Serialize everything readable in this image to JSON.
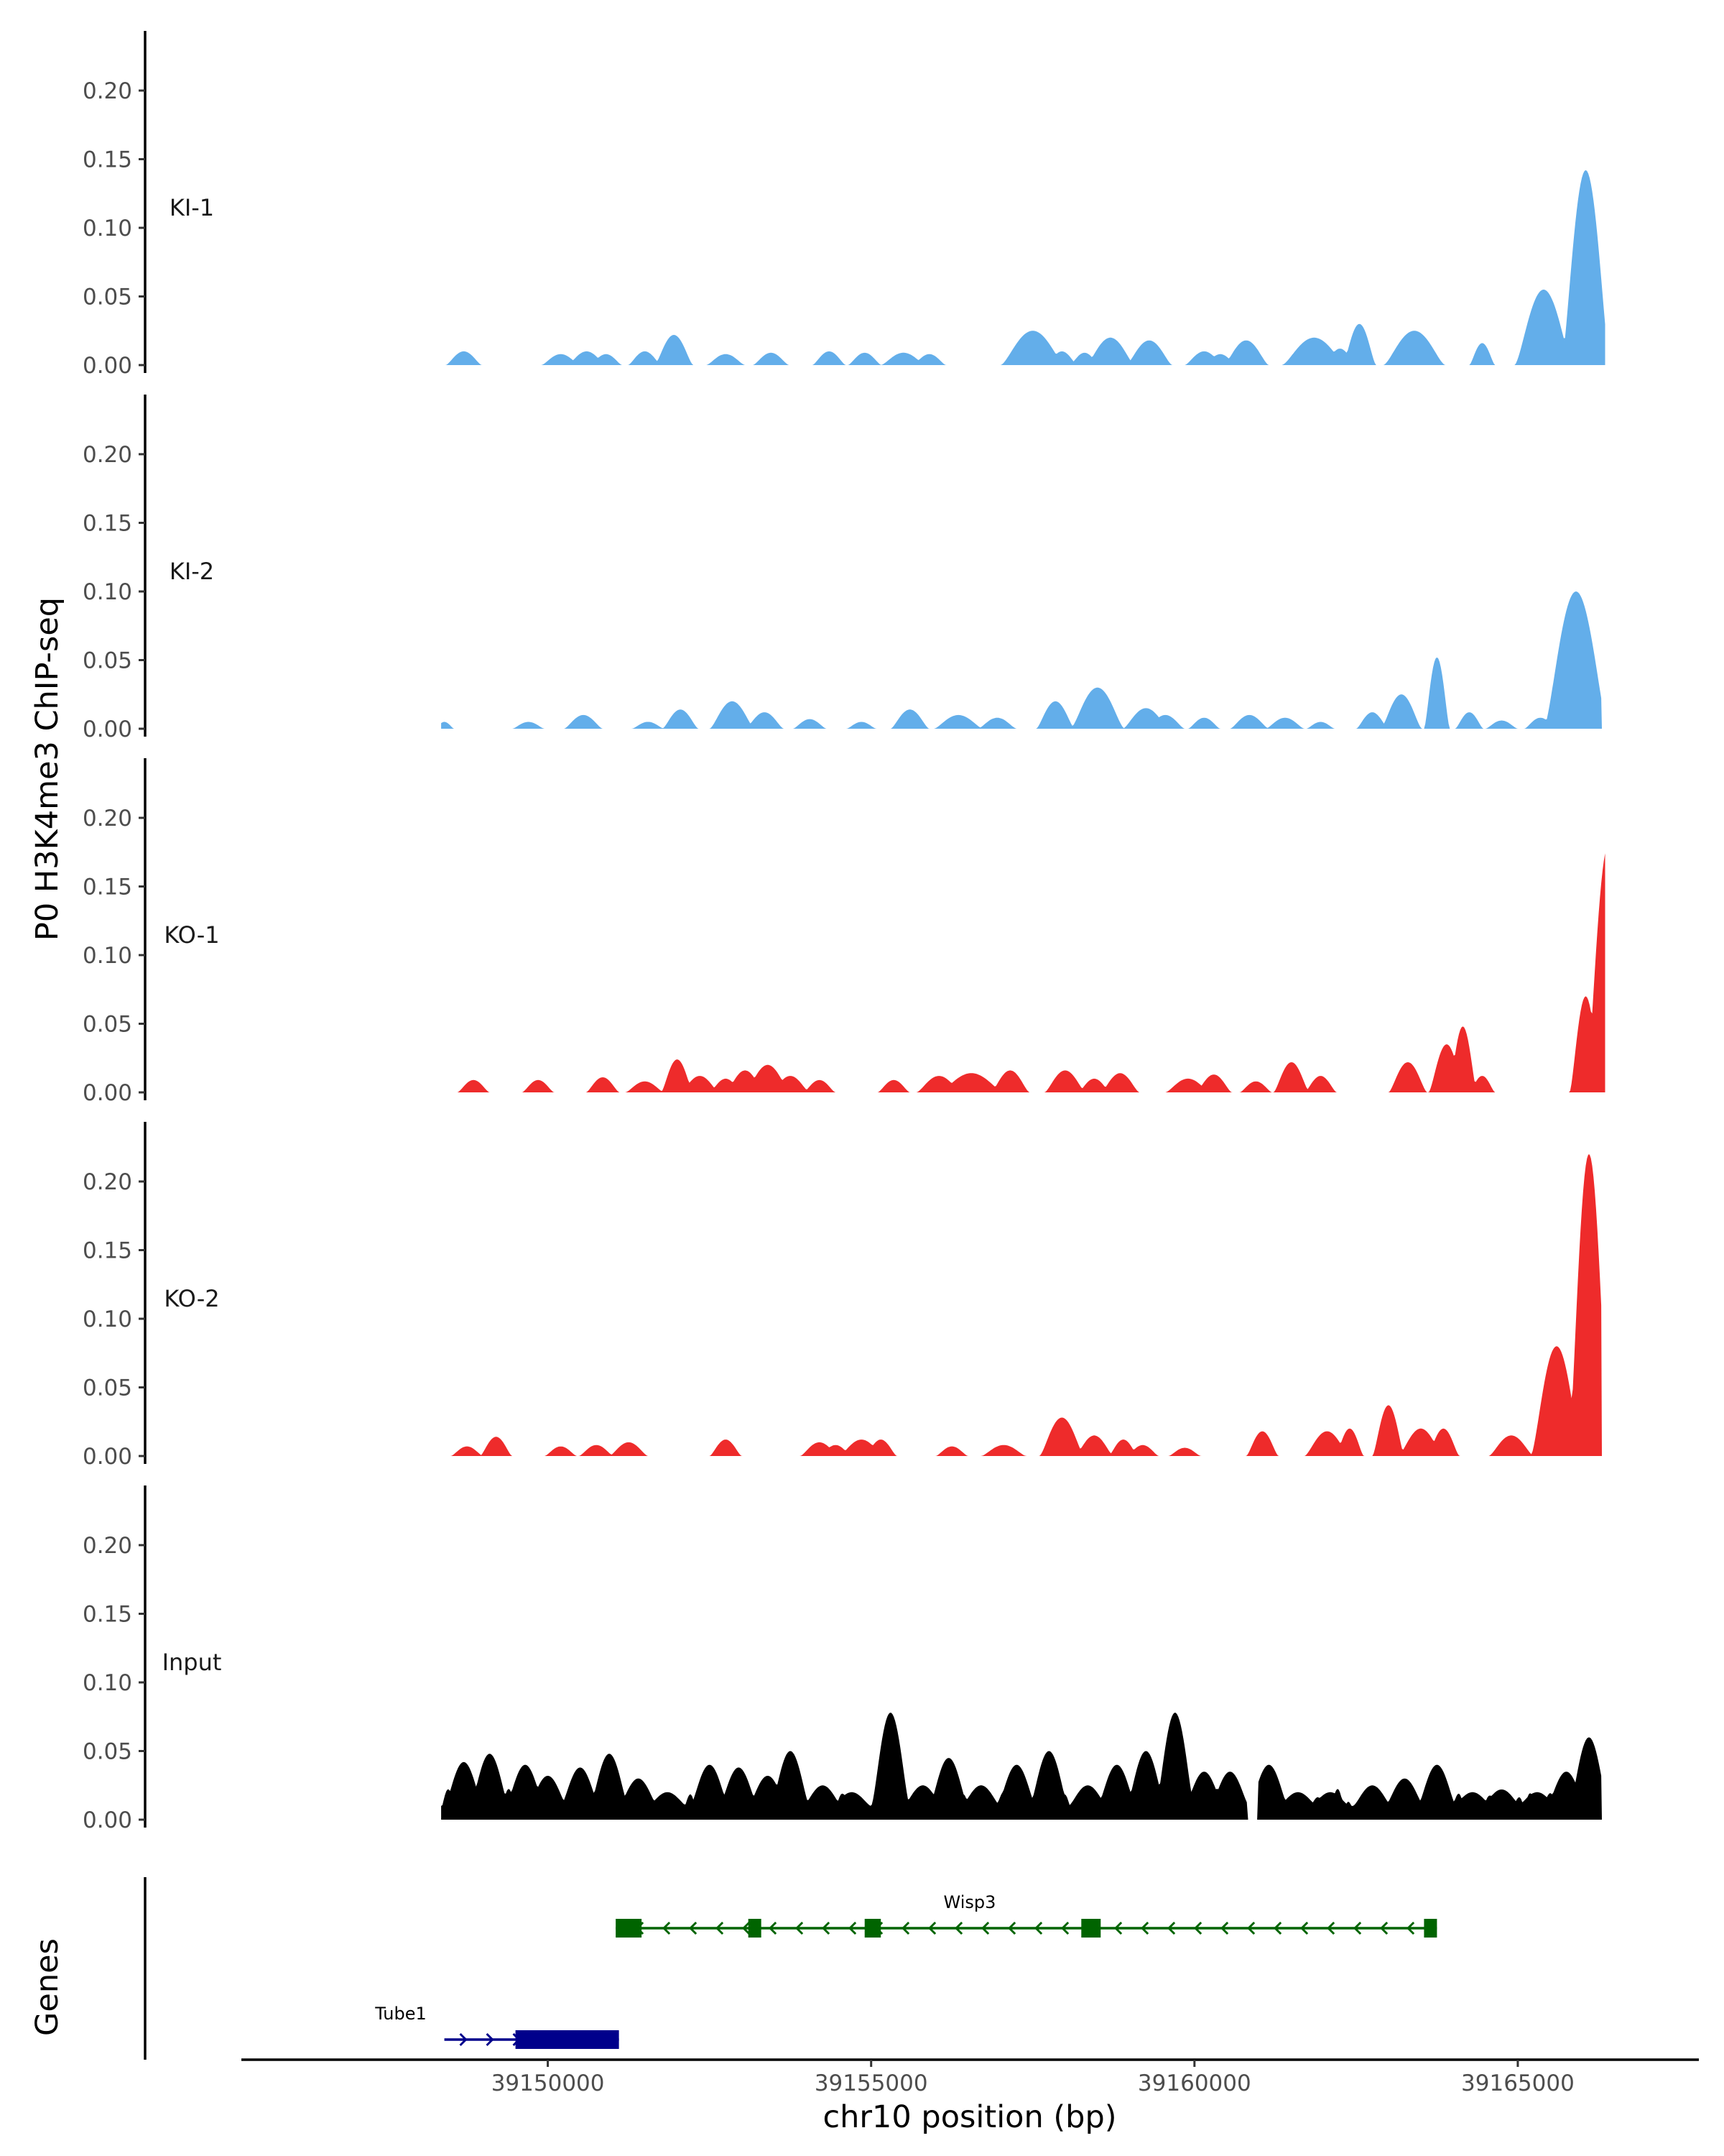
{
  "chart_data": {
    "type": "area",
    "title": "",
    "ylabel": "P0 H3K4me3 ChIP-seq",
    "xlabel": "chr10 position (bp)",
    "genes_label": "Genes",
    "xlim": [
      39145250,
      39167800
    ],
    "ylim": [
      0,
      0.24
    ],
    "y_ticks": [
      {
        "value": 0.0,
        "label": "0.00"
      },
      {
        "value": 0.05,
        "label": "0.05"
      },
      {
        "value": 0.1,
        "label": "0.10"
      },
      {
        "value": 0.15,
        "label": "0.15"
      },
      {
        "value": 0.2,
        "label": "0.20"
      }
    ],
    "x_ticks": [
      {
        "value": 39150000,
        "label": "39150000"
      },
      {
        "value": 39155000,
        "label": "39155000"
      },
      {
        "value": 39160000,
        "label": "39160000"
      },
      {
        "value": 39165000,
        "label": "39165000"
      }
    ],
    "tracks": [
      {
        "name": "KI-1",
        "color": "#63aeea",
        "peaks": [
          [
            39148700,
            0.01,
            280
          ],
          [
            39150200,
            0.008,
            300
          ],
          [
            39150600,
            0.01,
            300
          ],
          [
            39150900,
            0.008,
            250
          ],
          [
            39151500,
            0.01,
            260
          ],
          [
            39151950,
            0.022,
            300
          ],
          [
            39152750,
            0.008,
            300
          ],
          [
            39153450,
            0.009,
            280
          ],
          [
            39154350,
            0.01,
            260
          ],
          [
            39154900,
            0.009,
            260
          ],
          [
            39155500,
            0.009,
            350
          ],
          [
            39155900,
            0.008,
            260
          ],
          [
            39157500,
            0.025,
            500
          ],
          [
            39157950,
            0.01,
            240
          ],
          [
            39158300,
            0.009,
            230
          ],
          [
            39158700,
            0.02,
            380
          ],
          [
            39159300,
            0.018,
            360
          ],
          [
            39160150,
            0.01,
            300
          ],
          [
            39160400,
            0.008,
            250
          ],
          [
            39160800,
            0.018,
            350
          ],
          [
            39161850,
            0.02,
            500
          ],
          [
            39162250,
            0.012,
            250
          ],
          [
            39162550,
            0.03,
            260
          ],
          [
            39163400,
            0.025,
            480
          ],
          [
            39164450,
            0.016,
            200
          ],
          [
            39165400,
            0.055,
            450
          ],
          [
            39166050,
            0.142,
            380
          ]
        ]
      },
      {
        "name": "KI-2",
        "color": "#63aeea",
        "peaks": [
          [
            39148400,
            0.005,
            150
          ],
          [
            39149700,
            0.005,
            250
          ],
          [
            39150550,
            0.01,
            300
          ],
          [
            39151550,
            0.005,
            250
          ],
          [
            39152050,
            0.014,
            280
          ],
          [
            39152850,
            0.02,
            350
          ],
          [
            39153350,
            0.012,
            300
          ],
          [
            39154050,
            0.007,
            260
          ],
          [
            39154850,
            0.005,
            230
          ],
          [
            39155600,
            0.014,
            300
          ],
          [
            39156350,
            0.01,
            380
          ],
          [
            39156950,
            0.008,
            300
          ],
          [
            39157850,
            0.02,
            300
          ],
          [
            39158500,
            0.03,
            420
          ],
          [
            39159250,
            0.015,
            360
          ],
          [
            39159550,
            0.01,
            300
          ],
          [
            39160150,
            0.008,
            250
          ],
          [
            39160850,
            0.01,
            300
          ],
          [
            39161400,
            0.008,
            300
          ],
          [
            39161950,
            0.005,
            220
          ],
          [
            39162750,
            0.012,
            250
          ],
          [
            39163200,
            0.025,
            320
          ],
          [
            39163750,
            0.052,
            200
          ],
          [
            39164250,
            0.012,
            220
          ],
          [
            39164750,
            0.006,
            250
          ],
          [
            39165350,
            0.008,
            250
          ],
          [
            39165900,
            0.1,
            500
          ]
        ]
      },
      {
        "name": "KO-1",
        "color": "#ee2b2b",
        "peaks": [
          [
            39148850,
            0.009,
            250
          ],
          [
            39149850,
            0.009,
            250
          ],
          [
            39150850,
            0.011,
            260
          ],
          [
            39151500,
            0.008,
            300
          ],
          [
            39152000,
            0.024,
            250
          ],
          [
            39152350,
            0.012,
            300
          ],
          [
            39152750,
            0.01,
            250
          ],
          [
            39153050,
            0.016,
            300
          ],
          [
            39153400,
            0.02,
            350
          ],
          [
            39153750,
            0.012,
            300
          ],
          [
            39154200,
            0.009,
            250
          ],
          [
            39155350,
            0.009,
            250
          ],
          [
            39156050,
            0.012,
            350
          ],
          [
            39156550,
            0.014,
            500
          ],
          [
            39157150,
            0.016,
            300
          ],
          [
            39158000,
            0.016,
            320
          ],
          [
            39158450,
            0.01,
            250
          ],
          [
            39158850,
            0.014,
            300
          ],
          [
            39159900,
            0.01,
            350
          ],
          [
            39160300,
            0.013,
            280
          ],
          [
            39160950,
            0.008,
            250
          ],
          [
            39161500,
            0.022,
            280
          ],
          [
            39161950,
            0.012,
            250
          ],
          [
            39163300,
            0.022,
            300
          ],
          [
            39163900,
            0.035,
            280
          ],
          [
            39164150,
            0.048,
            220
          ],
          [
            39164450,
            0.012,
            200
          ],
          [
            39166050,
            0.07,
            250
          ],
          [
            39166400,
            0.18,
            350
          ]
        ]
      },
      {
        "name": "KO-2",
        "color": "#ee2b2b",
        "peaks": [
          [
            39148750,
            0.007,
            250
          ],
          [
            39149200,
            0.014,
            250
          ],
          [
            39150200,
            0.007,
            250
          ],
          [
            39150750,
            0.008,
            270
          ],
          [
            39151250,
            0.01,
            300
          ],
          [
            39152750,
            0.012,
            250
          ],
          [
            39154200,
            0.01,
            300
          ],
          [
            39154450,
            0.008,
            250
          ],
          [
            39154850,
            0.012,
            350
          ],
          [
            39155150,
            0.012,
            250
          ],
          [
            39156250,
            0.007,
            250
          ],
          [
            39157050,
            0.008,
            350
          ],
          [
            39157950,
            0.028,
            350
          ],
          [
            39158450,
            0.015,
            300
          ],
          [
            39158900,
            0.012,
            230
          ],
          [
            39159200,
            0.008,
            250
          ],
          [
            39159850,
            0.006,
            250
          ],
          [
            39161050,
            0.018,
            250
          ],
          [
            39162050,
            0.018,
            350
          ],
          [
            39162400,
            0.02,
            220
          ],
          [
            39163000,
            0.037,
            250
          ],
          [
            39163500,
            0.02,
            350
          ],
          [
            39163850,
            0.02,
            250
          ],
          [
            39164900,
            0.015,
            350
          ],
          [
            39165600,
            0.08,
            400
          ],
          [
            39166100,
            0.22,
            320
          ]
        ]
      },
      {
        "name": "Input",
        "color": "#000000",
        "baseline": 0.02,
        "peaks": [
          [
            39148700,
            0.032,
            300
          ],
          [
            39149100,
            0.038,
            300
          ],
          [
            39149650,
            0.03,
            300
          ],
          [
            39150000,
            0.022,
            300
          ],
          [
            39150500,
            0.028,
            300
          ],
          [
            39150950,
            0.038,
            300
          ],
          [
            39151400,
            0.02,
            300
          ],
          [
            39151850,
            0.01,
            300
          ],
          [
            39152500,
            0.03,
            300
          ],
          [
            39152950,
            0.028,
            300
          ],
          [
            39153400,
            0.022,
            300
          ],
          [
            39153750,
            0.04,
            300
          ],
          [
            39154250,
            0.015,
            300
          ],
          [
            39154700,
            0.01,
            300
          ],
          [
            39155300,
            0.068,
            300
          ],
          [
            39155800,
            0.015,
            300
          ],
          [
            39156200,
            0.035,
            300
          ],
          [
            39156700,
            0.015,
            300
          ],
          [
            39157250,
            0.03,
            300
          ],
          [
            39157750,
            0.04,
            300
          ],
          [
            39158350,
            0.015,
            300
          ],
          [
            39158800,
            0.03,
            300
          ],
          [
            39159250,
            0.04,
            300
          ],
          [
            39159700,
            0.068,
            300
          ],
          [
            39160150,
            0.025,
            300
          ],
          [
            39160550,
            0.025,
            300
          ],
          [
            39161150,
            0.03,
            300
          ],
          [
            39161600,
            0.01,
            300
          ],
          [
            39162100,
            0.01,
            300
          ],
          [
            39162750,
            0.015,
            300
          ],
          [
            39163250,
            0.02,
            300
          ],
          [
            39163750,
            0.03,
            300
          ],
          [
            39164300,
            0.01,
            300
          ],
          [
            39164750,
            0.012,
            300
          ],
          [
            39165300,
            0.01,
            300
          ],
          [
            39165750,
            0.025,
            300
          ],
          [
            39166100,
            0.05,
            300
          ]
        ],
        "gaps": [
          [
            39160830,
            39160980
          ]
        ]
      }
    ],
    "track_ranges": [
      [
        39148350,
        39166350
      ],
      [
        39148350,
        39166300
      ],
      [
        39148350,
        39166350
      ],
      [
        39148350,
        39166300
      ],
      [
        39148350,
        39166300
      ]
    ],
    "genes": [
      {
        "name": "Wisp3",
        "strand": "-",
        "color": "#006400",
        "row": 0,
        "start": 39151050,
        "end": 39163750,
        "exons": [
          [
            39151050,
            39151450
          ],
          [
            39153100,
            39153300
          ],
          [
            39154900,
            39155150
          ],
          [
            39158250,
            39158550
          ],
          [
            39163550,
            39163750
          ]
        ]
      },
      {
        "name": "Tube1",
        "strand": "+",
        "color": "#00008b",
        "row": 1,
        "start": 39148400,
        "end": 39151100,
        "exons": [
          [
            39149500,
            39151100
          ]
        ]
      }
    ]
  }
}
